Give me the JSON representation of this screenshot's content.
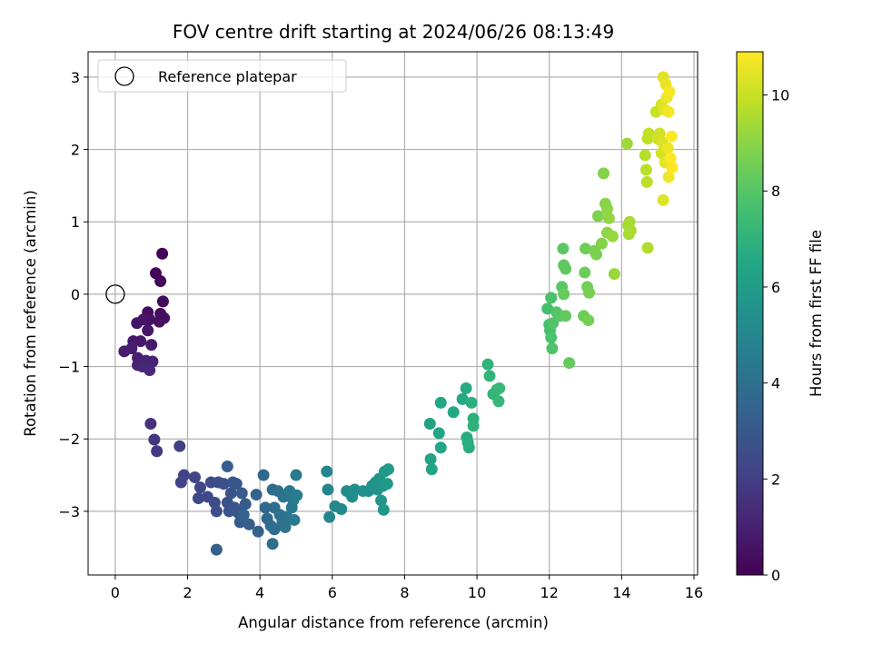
{
  "chart_data": {
    "type": "scatter",
    "title": "FOV centre drift starting at 2024/06/26 08:13:49",
    "xlabel": "Angular distance from reference (arcmin)",
    "ylabel": "Rotation from reference (arcmin)",
    "xlim": [
      -0.75,
      16.1
    ],
    "ylim": [
      -3.88,
      3.35
    ],
    "xticks": [
      0,
      2,
      4,
      6,
      8,
      10,
      12,
      14,
      16
    ],
    "yticks": [
      -3,
      -2,
      -1,
      0,
      1,
      2,
      3
    ],
    "grid": true,
    "legend": {
      "placement": "top-left",
      "entries": [
        "Reference platepar"
      ]
    },
    "reference_point": {
      "x": 0,
      "y": 0,
      "label": "Reference platepar"
    },
    "colorbar": {
      "label": "Hours from first FF file",
      "range": [
        0,
        10.9
      ],
      "ticks": [
        0,
        2,
        4,
        6,
        8,
        10
      ],
      "colormap": "viridis"
    },
    "points": [
      {
        "x": 1.3,
        "y": 0.56,
        "c": 0.1
      },
      {
        "x": 1.12,
        "y": 0.29,
        "c": 0.15
      },
      {
        "x": 1.25,
        "y": 0.18,
        "c": 0.2
      },
      {
        "x": 1.32,
        "y": -0.1,
        "c": 0.25
      },
      {
        "x": 0.9,
        "y": -0.25,
        "c": 0.3
      },
      {
        "x": 1.25,
        "y": -0.27,
        "c": 0.35
      },
      {
        "x": 1.35,
        "y": -0.33,
        "c": 0.4
      },
      {
        "x": 1.22,
        "y": -0.38,
        "c": 0.45
      },
      {
        "x": 0.95,
        "y": -0.35,
        "c": 0.5
      },
      {
        "x": 0.78,
        "y": -0.35,
        "c": 0.55
      },
      {
        "x": 0.6,
        "y": -0.4,
        "c": 0.6
      },
      {
        "x": 0.9,
        "y": -0.5,
        "c": 0.65
      },
      {
        "x": 0.5,
        "y": -0.65,
        "c": 0.7
      },
      {
        "x": 0.7,
        "y": -0.65,
        "c": 0.75
      },
      {
        "x": 1.0,
        "y": -0.7,
        "c": 0.8
      },
      {
        "x": 0.25,
        "y": -0.79,
        "c": 0.85
      },
      {
        "x": 0.45,
        "y": -0.75,
        "c": 0.9
      },
      {
        "x": 0.62,
        "y": -0.88,
        "c": 0.95
      },
      {
        "x": 0.62,
        "y": -0.98,
        "c": 1.0
      },
      {
        "x": 0.85,
        "y": -0.92,
        "c": 1.05
      },
      {
        "x": 1.03,
        "y": -0.93,
        "c": 1.1
      },
      {
        "x": 0.75,
        "y": -1.0,
        "c": 1.15
      },
      {
        "x": 0.95,
        "y": -1.05,
        "c": 1.2
      },
      {
        "x": 0.98,
        "y": -1.79,
        "c": 1.6
      },
      {
        "x": 1.08,
        "y": -2.01,
        "c": 1.7
      },
      {
        "x": 1.15,
        "y": -2.17,
        "c": 1.8
      },
      {
        "x": 1.78,
        "y": -2.1,
        "c": 2.0
      },
      {
        "x": 1.82,
        "y": -2.6,
        "c": 2.1
      },
      {
        "x": 1.9,
        "y": -2.5,
        "c": 2.15
      },
      {
        "x": 2.2,
        "y": -2.53,
        "c": 2.2
      },
      {
        "x": 2.35,
        "y": -2.67,
        "c": 2.3
      },
      {
        "x": 2.3,
        "y": -2.82,
        "c": 2.35
      },
      {
        "x": 2.55,
        "y": -2.8,
        "c": 2.4
      },
      {
        "x": 2.65,
        "y": -2.6,
        "c": 2.45
      },
      {
        "x": 2.75,
        "y": -2.88,
        "c": 2.5
      },
      {
        "x": 2.8,
        "y": -3.0,
        "c": 2.55
      },
      {
        "x": 2.85,
        "y": -2.6,
        "c": 2.6
      },
      {
        "x": 3.0,
        "y": -2.62,
        "c": 2.65
      },
      {
        "x": 3.1,
        "y": -2.88,
        "c": 2.7
      },
      {
        "x": 3.15,
        "y": -3.0,
        "c": 2.75
      },
      {
        "x": 3.2,
        "y": -2.75,
        "c": 2.8
      },
      {
        "x": 3.25,
        "y": -2.6,
        "c": 2.85
      },
      {
        "x": 3.35,
        "y": -2.62,
        "c": 2.9
      },
      {
        "x": 3.3,
        "y": -2.95,
        "c": 2.95
      },
      {
        "x": 3.4,
        "y": -3.02,
        "c": 3.0
      },
      {
        "x": 3.45,
        "y": -3.15,
        "c": 3.05
      },
      {
        "x": 3.5,
        "y": -2.75,
        "c": 3.1
      },
      {
        "x": 3.6,
        "y": -2.9,
        "c": 3.15
      },
      {
        "x": 3.7,
        "y": -3.18,
        "c": 3.2
      },
      {
        "x": 3.1,
        "y": -2.38,
        "c": 3.25
      },
      {
        "x": 2.8,
        "y": -3.53,
        "c": 3.3
      },
      {
        "x": 3.55,
        "y": -3.05,
        "c": 3.35
      },
      {
        "x": 3.95,
        "y": -3.28,
        "c": 3.4
      },
      {
        "x": 3.9,
        "y": -2.77,
        "c": 3.5
      },
      {
        "x": 4.1,
        "y": -2.5,
        "c": 3.6
      },
      {
        "x": 4.15,
        "y": -2.95,
        "c": 3.65
      },
      {
        "x": 4.2,
        "y": -3.1,
        "c": 3.7
      },
      {
        "x": 4.3,
        "y": -3.2,
        "c": 3.75
      },
      {
        "x": 4.35,
        "y": -2.7,
        "c": 3.8
      },
      {
        "x": 4.4,
        "y": -2.95,
        "c": 3.85
      },
      {
        "x": 4.4,
        "y": -3.25,
        "c": 3.9
      },
      {
        "x": 4.35,
        "y": -3.45,
        "c": 3.95
      },
      {
        "x": 4.5,
        "y": -2.72,
        "c": 4.0
      },
      {
        "x": 4.55,
        "y": -3.05,
        "c": 4.05
      },
      {
        "x": 4.62,
        "y": -3.15,
        "c": 4.1
      },
      {
        "x": 4.65,
        "y": -2.8,
        "c": 4.15
      },
      {
        "x": 4.7,
        "y": -3.22,
        "c": 4.2
      },
      {
        "x": 4.75,
        "y": -3.08,
        "c": 4.25
      },
      {
        "x": 4.82,
        "y": -2.72,
        "c": 4.3
      },
      {
        "x": 4.88,
        "y": -2.95,
        "c": 4.35
      },
      {
        "x": 4.92,
        "y": -2.85,
        "c": 4.4
      },
      {
        "x": 4.95,
        "y": -3.12,
        "c": 4.45
      },
      {
        "x": 5.0,
        "y": -2.5,
        "c": 4.5
      },
      {
        "x": 5.02,
        "y": -2.78,
        "c": 4.55
      },
      {
        "x": 5.85,
        "y": -2.45,
        "c": 4.9
      },
      {
        "x": 5.88,
        "y": -2.7,
        "c": 4.95
      },
      {
        "x": 5.92,
        "y": -3.08,
        "c": 5.0
      },
      {
        "x": 6.08,
        "y": -2.93,
        "c": 5.05
      },
      {
        "x": 6.25,
        "y": -2.97,
        "c": 5.1
      },
      {
        "x": 6.4,
        "y": -2.72,
        "c": 5.15
      },
      {
        "x": 6.5,
        "y": -2.75,
        "c": 5.2
      },
      {
        "x": 6.55,
        "y": -2.8,
        "c": 5.25
      },
      {
        "x": 6.62,
        "y": -2.7,
        "c": 5.3
      },
      {
        "x": 6.85,
        "y": -2.72,
        "c": 5.35
      },
      {
        "x": 7.0,
        "y": -2.72,
        "c": 5.4
      },
      {
        "x": 7.1,
        "y": -2.65,
        "c": 5.45
      },
      {
        "x": 7.2,
        "y": -2.6,
        "c": 5.5
      },
      {
        "x": 7.25,
        "y": -2.7,
        "c": 5.55
      },
      {
        "x": 7.3,
        "y": -2.55,
        "c": 5.6
      },
      {
        "x": 7.35,
        "y": -2.85,
        "c": 5.65
      },
      {
        "x": 7.4,
        "y": -2.65,
        "c": 5.7
      },
      {
        "x": 7.42,
        "y": -2.98,
        "c": 5.75
      },
      {
        "x": 7.45,
        "y": -2.45,
        "c": 5.8
      },
      {
        "x": 7.52,
        "y": -2.62,
        "c": 5.85
      },
      {
        "x": 7.55,
        "y": -2.42,
        "c": 5.9
      },
      {
        "x": 8.7,
        "y": -1.79,
        "c": 6.25
      },
      {
        "x": 8.72,
        "y": -2.28,
        "c": 6.3
      },
      {
        "x": 8.75,
        "y": -2.42,
        "c": 6.35
      },
      {
        "x": 8.95,
        "y": -1.92,
        "c": 6.4
      },
      {
        "x": 9.0,
        "y": -2.12,
        "c": 6.45
      },
      {
        "x": 9.0,
        "y": -1.5,
        "c": 6.5
      },
      {
        "x": 9.35,
        "y": -1.63,
        "c": 6.55
      },
      {
        "x": 9.6,
        "y": -1.45,
        "c": 6.6
      },
      {
        "x": 9.7,
        "y": -1.3,
        "c": 6.65
      },
      {
        "x": 9.72,
        "y": -1.98,
        "c": 6.7
      },
      {
        "x": 9.75,
        "y": -2.05,
        "c": 6.75
      },
      {
        "x": 9.78,
        "y": -2.12,
        "c": 6.8
      },
      {
        "x": 9.85,
        "y": -1.5,
        "c": 6.85
      },
      {
        "x": 9.9,
        "y": -1.72,
        "c": 6.9
      },
      {
        "x": 9.9,
        "y": -1.82,
        "c": 6.95
      },
      {
        "x": 10.3,
        "y": -0.97,
        "c": 7.0
      },
      {
        "x": 10.35,
        "y": -1.13,
        "c": 7.05
      },
      {
        "x": 10.45,
        "y": -1.38,
        "c": 7.1
      },
      {
        "x": 10.55,
        "y": -1.32,
        "c": 7.15
      },
      {
        "x": 10.6,
        "y": -1.48,
        "c": 7.2
      },
      {
        "x": 10.62,
        "y": -1.3,
        "c": 7.25
      },
      {
        "x": 11.95,
        "y": -0.2,
        "c": 7.6
      },
      {
        "x": 12.0,
        "y": -0.42,
        "c": 7.65
      },
      {
        "x": 12.02,
        "y": -0.5,
        "c": 7.7
      },
      {
        "x": 12.05,
        "y": -0.05,
        "c": 7.75
      },
      {
        "x": 12.05,
        "y": -0.6,
        "c": 7.8
      },
      {
        "x": 12.08,
        "y": -0.75,
        "c": 7.85
      },
      {
        "x": 12.1,
        "y": -0.4,
        "c": 7.9
      },
      {
        "x": 12.2,
        "y": -0.25,
        "c": 7.95
      },
      {
        "x": 12.3,
        "y": -0.3,
        "c": 8.0
      },
      {
        "x": 12.35,
        "y": 0.1,
        "c": 8.05
      },
      {
        "x": 12.38,
        "y": 0.63,
        "c": 8.1
      },
      {
        "x": 12.4,
        "y": 0.4,
        "c": 8.15
      },
      {
        "x": 12.45,
        "y": 0.35,
        "c": 8.2
      },
      {
        "x": 12.45,
        "y": -0.3,
        "c": 8.25
      },
      {
        "x": 12.55,
        "y": -0.95,
        "c": 8.3
      },
      {
        "x": 12.4,
        "y": 0.0,
        "c": 8.35
      },
      {
        "x": 12.95,
        "y": -0.3,
        "c": 8.4
      },
      {
        "x": 12.98,
        "y": 0.3,
        "c": 8.45
      },
      {
        "x": 13.0,
        "y": 0.63,
        "c": 8.5
      },
      {
        "x": 13.05,
        "y": 0.1,
        "c": 8.55
      },
      {
        "x": 13.08,
        "y": -0.36,
        "c": 8.6
      },
      {
        "x": 13.1,
        "y": 0.02,
        "c": 8.65
      },
      {
        "x": 13.25,
        "y": 0.6,
        "c": 8.7
      },
      {
        "x": 13.3,
        "y": 0.55,
        "c": 8.75
      },
      {
        "x": 13.35,
        "y": 1.08,
        "c": 8.8
      },
      {
        "x": 13.45,
        "y": 0.7,
        "c": 8.85
      },
      {
        "x": 13.5,
        "y": 1.67,
        "c": 8.9
      },
      {
        "x": 13.55,
        "y": 1.25,
        "c": 8.95
      },
      {
        "x": 13.6,
        "y": 1.18,
        "c": 9.0
      },
      {
        "x": 13.6,
        "y": 0.85,
        "c": 9.05
      },
      {
        "x": 13.65,
        "y": 1.05,
        "c": 9.1
      },
      {
        "x": 13.75,
        "y": 0.8,
        "c": 9.15
      },
      {
        "x": 13.8,
        "y": 0.28,
        "c": 9.2
      },
      {
        "x": 14.15,
        "y": 2.08,
        "c": 9.3
      },
      {
        "x": 14.18,
        "y": 0.95,
        "c": 9.35
      },
      {
        "x": 14.2,
        "y": 0.83,
        "c": 9.4
      },
      {
        "x": 14.22,
        "y": 1.0,
        "c": 9.45
      },
      {
        "x": 14.25,
        "y": 0.88,
        "c": 9.5
      },
      {
        "x": 14.72,
        "y": 0.64,
        "c": 9.6
      },
      {
        "x": 14.65,
        "y": 1.92,
        "c": 9.7
      },
      {
        "x": 14.68,
        "y": 1.72,
        "c": 9.75
      },
      {
        "x": 14.7,
        "y": 1.55,
        "c": 9.8
      },
      {
        "x": 14.72,
        "y": 2.15,
        "c": 9.85
      },
      {
        "x": 14.75,
        "y": 2.22,
        "c": 9.9
      },
      {
        "x": 14.95,
        "y": 2.52,
        "c": 10.0
      },
      {
        "x": 15.0,
        "y": 2.15,
        "c": 10.1
      },
      {
        "x": 15.05,
        "y": 2.22,
        "c": 10.15
      },
      {
        "x": 15.1,
        "y": 1.95,
        "c": 10.2
      },
      {
        "x": 15.1,
        "y": 2.62,
        "c": 10.25
      },
      {
        "x": 15.12,
        "y": 2.1,
        "c": 10.3
      },
      {
        "x": 15.15,
        "y": 1.3,
        "c": 10.35
      },
      {
        "x": 15.15,
        "y": 3.0,
        "c": 10.4
      },
      {
        "x": 15.18,
        "y": 2.55,
        "c": 10.45
      },
      {
        "x": 15.2,
        "y": 1.82,
        "c": 10.5
      },
      {
        "x": 15.22,
        "y": 2.9,
        "c": 10.55
      },
      {
        "x": 15.25,
        "y": 2.72,
        "c": 10.6
      },
      {
        "x": 15.28,
        "y": 2.02,
        "c": 10.65
      },
      {
        "x": 15.3,
        "y": 1.62,
        "c": 10.7
      },
      {
        "x": 15.3,
        "y": 2.52,
        "c": 10.75
      },
      {
        "x": 15.32,
        "y": 2.8,
        "c": 10.8
      },
      {
        "x": 15.35,
        "y": 1.88,
        "c": 10.85
      },
      {
        "x": 15.38,
        "y": 2.18,
        "c": 10.88
      },
      {
        "x": 15.4,
        "y": 1.75,
        "c": 10.9
      }
    ]
  }
}
